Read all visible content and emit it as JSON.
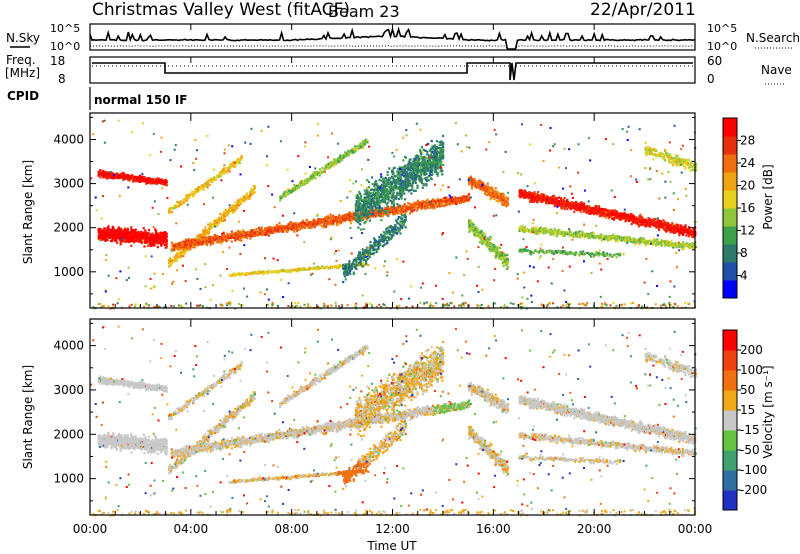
{
  "header": {
    "station": "Christmas Valley West (fitACF)",
    "beam": "Beam 23",
    "date": "22/Apr/2011"
  },
  "top_panels": {
    "nsky_label": "N.Sky",
    "nsky_ticks": [
      "10^5",
      "10^0"
    ],
    "nsearch_label": "N.Search",
    "nsearch_ticks": [
      "10^5",
      "10^0"
    ],
    "freq_label_1": "Freq.",
    "freq_label_2": "[MHz]",
    "freq_ticks": [
      "18",
      "8"
    ],
    "nave_label": "Nave",
    "nave_ticks": [
      "60",
      "0"
    ],
    "cpid_label": "CPID",
    "cpid_value": "normal 150 IF"
  },
  "chart_data": [
    {
      "type": "heatmap",
      "title": "",
      "ylabel": "Slant Range [km]",
      "yticks": [
        "1000",
        "2000",
        "3000",
        "4000"
      ],
      "ylim": [
        180,
        4600
      ],
      "xlim": [
        0,
        24
      ],
      "colorbar_label": "Power [dB]",
      "colorbar_ticks": [
        "28",
        "24",
        "20",
        "16",
        "12",
        "8",
        "4"
      ],
      "colorbar_range": [
        0,
        32
      ],
      "colors": [
        "#0000ff",
        "#1f4fa8",
        "#2d7a6a",
        "#3fa04a",
        "#8fc63c",
        "#e6d21e",
        "#f2a314",
        "#f06e10",
        "#e8300c",
        "#ff0000"
      ]
    },
    {
      "type": "heatmap",
      "title": "",
      "ylabel": "Slant Range [km]",
      "yticks": [
        "1000",
        "2000",
        "3000",
        "4000"
      ],
      "ylim": [
        180,
        4600
      ],
      "xlim": [
        0,
        24
      ],
      "colorbar_label": "Velocity [m s⁻¹]",
      "colorbar_ticks": [
        "200",
        "100",
        "50",
        "15",
        "-15",
        "-50",
        "-100",
        "-200"
      ],
      "colorbar_range": [
        -250,
        250
      ],
      "colors": [
        "#2030c0",
        "#2f6fa0",
        "#3fa070",
        "#66c340",
        "#c8c8c8",
        "#f0a818",
        "#f07010",
        "#f04010",
        "#ff0000"
      ]
    }
  ],
  "xaxis": {
    "label": "Time UT",
    "ticks": [
      "00:00",
      "04:00",
      "08:00",
      "12:00",
      "16:00",
      "20:00",
      "00:00"
    ],
    "tick_hours": [
      0,
      4,
      8,
      12,
      16,
      20,
      24
    ]
  }
}
